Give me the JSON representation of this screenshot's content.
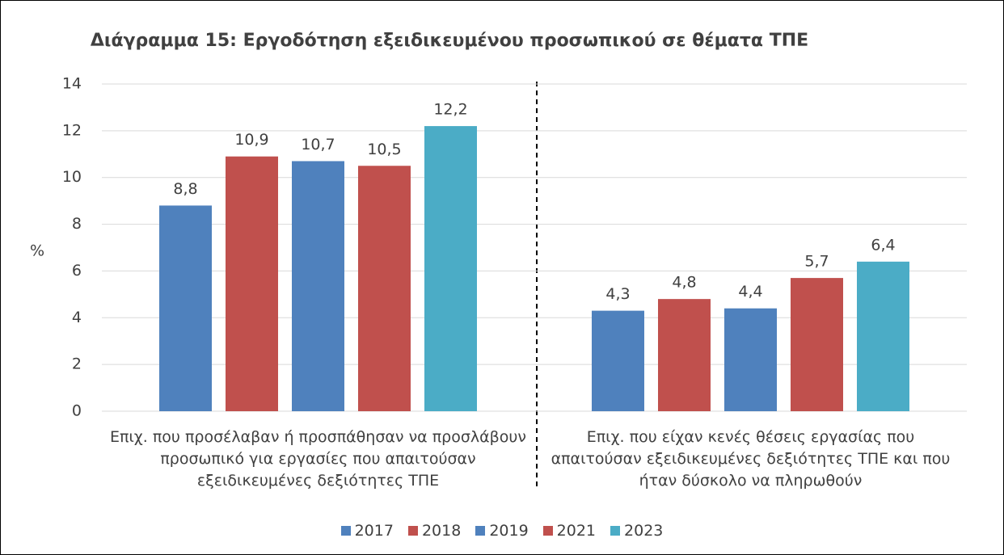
{
  "chart_data": {
    "type": "bar",
    "title": "Διάγραμμα 15: Εργοδότηση εξειδικευμένου προσωπικού σε θέματα ΤΠΕ",
    "ylabel": "%",
    "categories": [
      "Επιχ. που προσέλαβαν ή προσπάθησαν να προσλάβουν προσωπικό για εργασίες που απαιτούσαν εξειδικευμένες δεξιότητες ΤΠΕ",
      "Επιχ. που είχαν κενές θέσεις εργασίας που απαιτούσαν εξειδικευμένες δεξιότητες ΤΠΕ και που ήταν δύσκολο να πληρωθούν"
    ],
    "series": [
      {
        "name": "2017",
        "color": "#4f81bd",
        "values": [
          8.8,
          4.3
        ],
        "value_labels": [
          "8,8",
          "4,3"
        ]
      },
      {
        "name": "2018",
        "color": "#c0504d",
        "values": [
          10.9,
          4.8
        ],
        "value_labels": [
          "10,9",
          "4,8"
        ]
      },
      {
        "name": "2019",
        "color": "#4f81bd",
        "values": [
          10.7,
          4.4
        ],
        "value_labels": [
          "10,7",
          "4,4"
        ]
      },
      {
        "name": "2021",
        "color": "#c0504d",
        "values": [
          10.5,
          5.7
        ],
        "value_labels": [
          "10,5",
          "5,7"
        ]
      },
      {
        "name": "2023",
        "color": "#4bacc6",
        "values": [
          12.2,
          6.4
        ],
        "value_labels": [
          "12,2",
          "6,4"
        ]
      }
    ],
    "ylim": [
      0,
      14
    ],
    "yticks": [
      0,
      2,
      4,
      6,
      8,
      10,
      12,
      14
    ],
    "grid": true,
    "legend": "bottom"
  }
}
